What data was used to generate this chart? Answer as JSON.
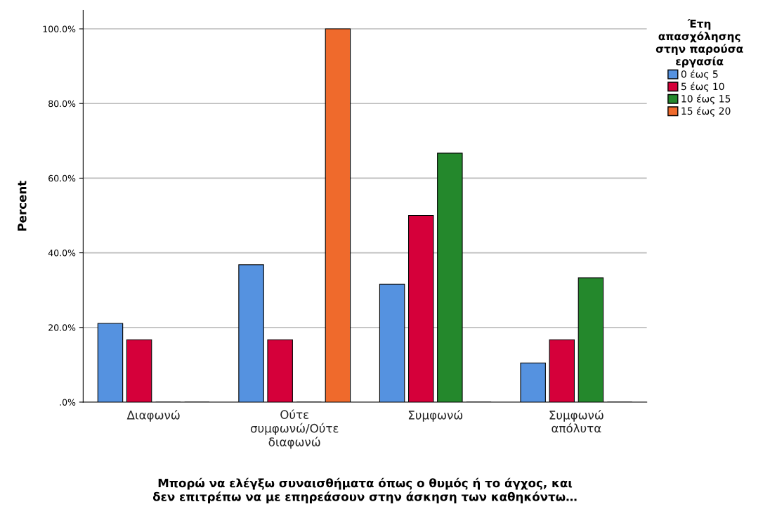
{
  "chart_data": {
    "type": "bar",
    "categories": [
      "Διαφωνώ",
      "Ούτε\nσυμφωνώ/Ούτε\nδιαφωνώ",
      "Συμφωνώ",
      "Συμφωνώ\nαπόλυτα"
    ],
    "series": [
      {
        "name": "0 έως 5",
        "color": "#5592e0",
        "values": [
          21.1,
          36.8,
          31.6,
          10.5
        ]
      },
      {
        "name": "5 έως 10",
        "color": "#d5003a",
        "values": [
          16.7,
          16.7,
          50.0,
          16.7
        ]
      },
      {
        "name": "10 έως 15",
        "color": "#24882c",
        "values": [
          0,
          0,
          66.7,
          33.3
        ]
      },
      {
        "name": "15 έως 20",
        "color": "#ef6a2c",
        "values": [
          0,
          100.0,
          0,
          0
        ]
      }
    ],
    "ylabel": "Percent",
    "xlabel": "Μπορώ να ελέγξω συναισθήματα όπως ο θυμός ή το άγχος, και\nδεν επιτρέπω να με επηρεάσουν στην άσκηση των καθηκόντω…",
    "legend_title": "Έτη\nαπασχόλησης\nστην παρούσα\nεργασία",
    "ylim": [
      0,
      105
    ],
    "yticks": [
      {
        "value": 0,
        "label": ".0%"
      },
      {
        "value": 20,
        "label": "20.0%"
      },
      {
        "value": 40,
        "label": "40.0%"
      },
      {
        "value": 60,
        "label": "60.0%"
      },
      {
        "value": 80,
        "label": "80.0%"
      },
      {
        "value": 100,
        "label": "100.0%"
      }
    ],
    "grid": "y",
    "legend": "top right"
  }
}
